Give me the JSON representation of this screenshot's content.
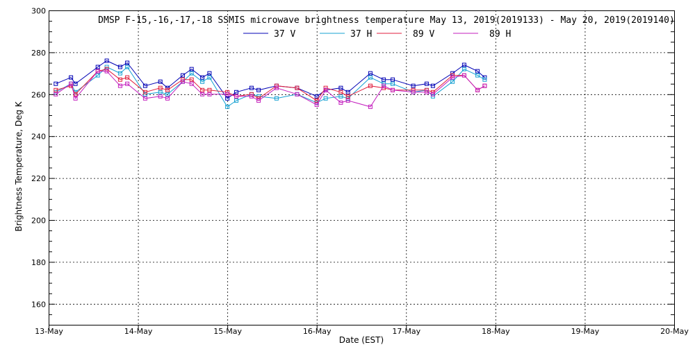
{
  "chart_data": {
    "type": "line",
    "title": "DMSP F-15,-16,-17,-18 SSMIS microwave brightness temperature May 13, 2019(2019133) - May 20, 2019(2019140)",
    "xlabel": "Date (EST)",
    "ylabel": "Brightness Temperature, Deg K",
    "xlim": [
      0,
      7
    ],
    "ylim": [
      150,
      300
    ],
    "yticks": [
      160,
      180,
      200,
      220,
      240,
      260,
      280,
      300
    ],
    "xtick_labels": [
      "13-May",
      "14-May",
      "15-May",
      "16-May",
      "17-May",
      "18-May",
      "19-May",
      "20-May"
    ],
    "grid": true,
    "legend_position": "top-center",
    "x": [
      0.08,
      0.25,
      0.3,
      0.55,
      0.65,
      0.8,
      0.88,
      1.08,
      1.25,
      1.33,
      1.5,
      1.6,
      1.72,
      1.8,
      2.0,
      2.1,
      2.27,
      2.35,
      2.55,
      2.78,
      3.0,
      3.1,
      3.27,
      3.35,
      3.6,
      3.75,
      3.85,
      4.08,
      4.23,
      4.3,
      4.52,
      4.65,
      4.8,
      4.88
    ],
    "series": [
      {
        "name": "37 V",
        "color": "#0000b4",
        "values": [
          265,
          268,
          265,
          273,
          276,
          273,
          275,
          264,
          266,
          263,
          269,
          272,
          268,
          270,
          258,
          261,
          263,
          262,
          264,
          263,
          259,
          262,
          263,
          261,
          270,
          267,
          267,
          264,
          265,
          264,
          270,
          274,
          271,
          268
        ]
      },
      {
        "name": "37 H",
        "color": "#14a0d2",
        "values": [
          261,
          265,
          261,
          269,
          273,
          270,
          273,
          260,
          261,
          260,
          266,
          270,
          266,
          268,
          254,
          257,
          260,
          259,
          258,
          260,
          256,
          258,
          259,
          258,
          268,
          265,
          265,
          261,
          262,
          259,
          266,
          272,
          269,
          267
        ]
      },
      {
        "name": "89 V",
        "color": "#e01e3c",
        "values": [
          262,
          264,
          260,
          271,
          272,
          267,
          268,
          261,
          263,
          262,
          267,
          267,
          262,
          262,
          261,
          259,
          260,
          258,
          264,
          263,
          257,
          263,
          261,
          259,
          264,
          263,
          262,
          262,
          262,
          261,
          269,
          269,
          262,
          264
        ]
      },
      {
        "name": "89 H",
        "color": "#c31ebe",
        "values": [
          260,
          265,
          258,
          271,
          271,
          264,
          265,
          258,
          259,
          258,
          266,
          265,
          260,
          260,
          260,
          259,
          259,
          257,
          263,
          260,
          255,
          262,
          256,
          257,
          254,
          264,
          262,
          261,
          261,
          260,
          268,
          269,
          262,
          264
        ]
      }
    ]
  }
}
